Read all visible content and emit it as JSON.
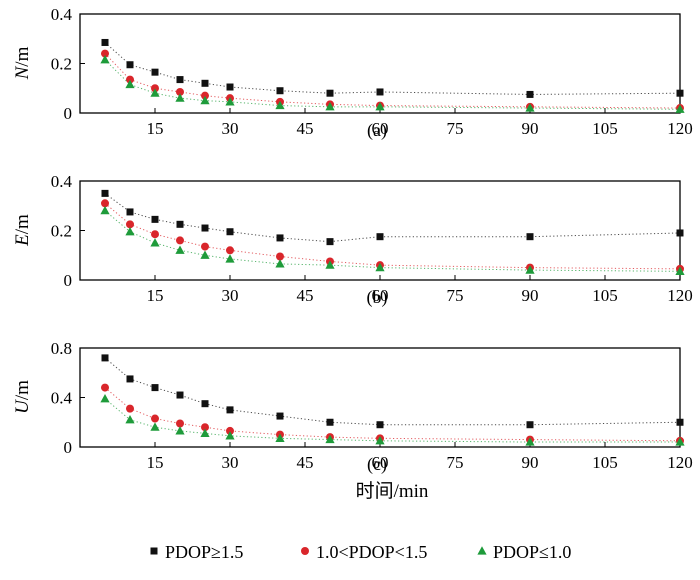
{
  "figure": {
    "xlabel": "时间/min",
    "colors": {
      "PDOP≥1.5": "#111111",
      "1.0<PDOP<1.5": "#d9262b",
      "PDOP≤1.0": "#1e9b3a"
    },
    "markers": {
      "PDOP≥1.5": "square",
      "1.0<PDOP<1.5": "circle",
      "PDOP≤1.0": "triangle"
    },
    "legend": [
      {
        "label": "PDOP≥1.5",
        "marker": "square",
        "color": "#111111"
      },
      {
        "label": "1.0<PDOP<1.5",
        "marker": "circle",
        "color": "#d9262b"
      },
      {
        "label": "PDOP≤1.0",
        "marker": "triangle",
        "color": "#1e9b3a"
      }
    ]
  },
  "chart_data": [
    {
      "type": "scatter",
      "panel_label": "(a)",
      "ylabel_italic": "N",
      "ylabel_unit": "/m",
      "xlim": [
        0,
        120
      ],
      "ylim": [
        0,
        0.4
      ],
      "xticks": [
        15,
        30,
        45,
        60,
        75,
        90,
        105,
        120
      ],
      "xtick_labels": [
        "15",
        "30",
        "45",
        "60",
        "75",
        "90",
        "105",
        "120"
      ],
      "yticks": [
        0,
        0.2,
        0.4
      ],
      "ytick_labels": [
        "0",
        "0.2",
        "0.4"
      ],
      "grid": false,
      "series": [
        {
          "name": "PDOP≥1.5",
          "x": [
            5,
            10,
            15,
            20,
            25,
            30,
            40,
            50,
            60,
            90,
            120
          ],
          "y": [
            0.285,
            0.195,
            0.165,
            0.135,
            0.12,
            0.105,
            0.09,
            0.08,
            0.085,
            0.075,
            0.08
          ]
        },
        {
          "name": "1.0<PDOP<1.5",
          "x": [
            5,
            10,
            15,
            20,
            25,
            30,
            40,
            50,
            60,
            90,
            120
          ],
          "y": [
            0.24,
            0.135,
            0.1,
            0.085,
            0.07,
            0.06,
            0.045,
            0.035,
            0.03,
            0.025,
            0.02
          ]
        },
        {
          "name": "PDOP≤1.0",
          "x": [
            5,
            10,
            15,
            20,
            25,
            30,
            40,
            50,
            60,
            90,
            120
          ],
          "y": [
            0.215,
            0.115,
            0.08,
            0.06,
            0.05,
            0.045,
            0.03,
            0.025,
            0.025,
            0.02,
            0.015
          ]
        }
      ]
    },
    {
      "type": "scatter",
      "panel_label": "(b)",
      "ylabel_italic": "E",
      "ylabel_unit": "/m",
      "xlim": [
        0,
        120
      ],
      "ylim": [
        0,
        0.4
      ],
      "xticks": [
        15,
        30,
        45,
        60,
        75,
        90,
        105,
        120
      ],
      "xtick_labels": [
        "15",
        "30",
        "45",
        "60",
        "75",
        "90",
        "105",
        "120"
      ],
      "yticks": [
        0,
        0.2,
        0.4
      ],
      "ytick_labels": [
        "0",
        "0.2",
        "0.4"
      ],
      "grid": false,
      "series": [
        {
          "name": "PDOP≥1.5",
          "x": [
            5,
            10,
            15,
            20,
            25,
            30,
            40,
            50,
            60,
            90,
            120
          ],
          "y": [
            0.35,
            0.275,
            0.245,
            0.225,
            0.21,
            0.195,
            0.17,
            0.155,
            0.175,
            0.175,
            0.19
          ]
        },
        {
          "name": "1.0<PDOP<1.5",
          "x": [
            5,
            10,
            15,
            20,
            25,
            30,
            40,
            50,
            60,
            90,
            120
          ],
          "y": [
            0.31,
            0.225,
            0.185,
            0.16,
            0.135,
            0.12,
            0.095,
            0.075,
            0.06,
            0.05,
            0.045
          ]
        },
        {
          "name": "PDOP≤1.0",
          "x": [
            5,
            10,
            15,
            20,
            25,
            30,
            40,
            50,
            60,
            90,
            120
          ],
          "y": [
            0.28,
            0.195,
            0.15,
            0.12,
            0.1,
            0.085,
            0.065,
            0.06,
            0.05,
            0.04,
            0.035
          ]
        }
      ]
    },
    {
      "type": "scatter",
      "panel_label": "(c)",
      "ylabel_italic": "U",
      "ylabel_unit": "/m",
      "xlim": [
        0,
        120
      ],
      "ylim": [
        0,
        0.8
      ],
      "xticks": [
        15,
        30,
        45,
        60,
        75,
        90,
        105,
        120
      ],
      "xtick_labels": [
        "15",
        "30",
        "45",
        "60",
        "75",
        "90",
        "105",
        "120"
      ],
      "yticks": [
        0,
        0.4,
        0.8
      ],
      "ytick_labels": [
        "0",
        "0.4",
        "0.8"
      ],
      "grid": false,
      "series": [
        {
          "name": "PDOP≥1.5",
          "x": [
            5,
            10,
            15,
            20,
            25,
            30,
            40,
            50,
            60,
            90,
            120
          ],
          "y": [
            0.72,
            0.55,
            0.48,
            0.42,
            0.35,
            0.3,
            0.25,
            0.2,
            0.18,
            0.18,
            0.2
          ]
        },
        {
          "name": "1.0<PDOP<1.5",
          "x": [
            5,
            10,
            15,
            20,
            25,
            30,
            40,
            50,
            60,
            90,
            120
          ],
          "y": [
            0.48,
            0.31,
            0.23,
            0.19,
            0.16,
            0.13,
            0.1,
            0.08,
            0.07,
            0.06,
            0.05
          ]
        },
        {
          "name": "PDOP≤1.0",
          "x": [
            5,
            10,
            15,
            20,
            25,
            30,
            40,
            50,
            60,
            90,
            120
          ],
          "y": [
            0.39,
            0.22,
            0.16,
            0.13,
            0.11,
            0.09,
            0.07,
            0.06,
            0.05,
            0.04,
            0.04
          ]
        }
      ]
    }
  ]
}
